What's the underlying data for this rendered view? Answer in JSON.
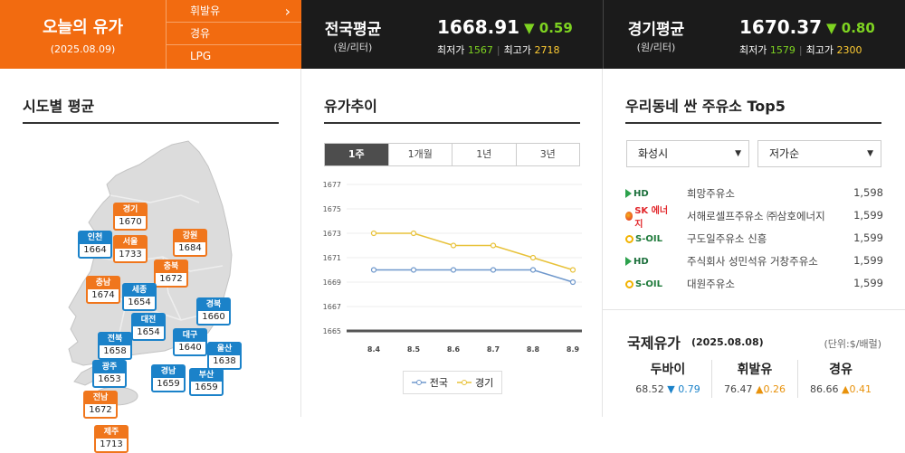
{
  "today": {
    "title": "오늘의 유가",
    "date": "(2025.08.09)"
  },
  "fuel_menu": [
    {
      "label": "휘발유"
    },
    {
      "label": "경유"
    },
    {
      "label": "LPG"
    }
  ],
  "national": {
    "name": "전국평균",
    "unit": "(원/리터)",
    "price": "1668.91",
    "change": "▼ 0.59",
    "min_label": "최저가",
    "min": "1567",
    "max_label": "최고가",
    "max": "2718"
  },
  "gyeonggi": {
    "name": "경기평균",
    "unit": "(원/리터)",
    "price": "1670.37",
    "change": "▼ 0.80",
    "min_label": "최저가",
    "min": "1579",
    "max_label": "최고가",
    "max": "2300"
  },
  "regions": {
    "title": "시도별 평균",
    "items": [
      {
        "name": "경기",
        "value": "1670"
      },
      {
        "name": "인천",
        "value": "1664"
      },
      {
        "name": "서울",
        "value": "1733"
      },
      {
        "name": "강원",
        "value": "1684"
      },
      {
        "name": "충북",
        "value": "1672"
      },
      {
        "name": "충남",
        "value": "1674"
      },
      {
        "name": "세종",
        "value": "1654"
      },
      {
        "name": "경북",
        "value": "1660"
      },
      {
        "name": "대전",
        "value": "1654"
      },
      {
        "name": "전북",
        "value": "1658"
      },
      {
        "name": "대구",
        "value": "1640"
      },
      {
        "name": "울산",
        "value": "1638"
      },
      {
        "name": "광주",
        "value": "1653"
      },
      {
        "name": "경남",
        "value": "1659"
      },
      {
        "name": "부산",
        "value": "1659"
      },
      {
        "name": "전남",
        "value": "1672"
      },
      {
        "name": "제주",
        "value": "1713"
      }
    ]
  },
  "trend": {
    "title": "유가추이",
    "tabs": [
      {
        "label": "1주"
      },
      {
        "label": "1개월"
      },
      {
        "label": "1년"
      },
      {
        "label": "3년"
      }
    ],
    "legend_national": "전국",
    "legend_gyeonggi": "경기"
  },
  "chart_data": {
    "type": "line",
    "x": [
      "8.4",
      "8.5",
      "8.6",
      "8.7",
      "8.8",
      "8.9"
    ],
    "series": [
      {
        "name": "전국",
        "values": [
          1670,
          1670,
          1670,
          1670,
          1670,
          1669
        ],
        "color": "#6f98cc"
      },
      {
        "name": "경기",
        "values": [
          1673,
          1673,
          1672,
          1672,
          1671,
          1670
        ],
        "color": "#e8c23a"
      }
    ],
    "ylim": [
      1665,
      1677
    ],
    "yticks": [
      1665,
      1667,
      1669,
      1671,
      1673,
      1675,
      1677
    ],
    "grid": true,
    "legend": "bottom"
  },
  "stations": {
    "title": "우리동네 싼 주유소 Top5",
    "region_select": "화성시",
    "sort_select": "저가순",
    "items": [
      {
        "brand": "HD 현대오일뱅크",
        "logo": "HD",
        "name": "희망주유소",
        "price": "1,598"
      },
      {
        "brand": "SK에너지",
        "logo": "SK 에너지",
        "name": "서해로셀프주유소 ㈜삼호에너지",
        "price": "1,599"
      },
      {
        "brand": "S-OIL",
        "logo": "S-OIL",
        "name": "구도일주유소 신흥",
        "price": "1,599"
      },
      {
        "brand": "HD 현대오일뱅크",
        "logo": "HD",
        "name": "주식회사 성민석유 거창주유소",
        "price": "1,599"
      },
      {
        "brand": "S-OIL",
        "logo": "S-OIL",
        "name": "대원주유소",
        "price": "1,599"
      }
    ]
  },
  "international": {
    "title": "국제유가",
    "date": "(2025.08.08)",
    "unit": "(단위:$/배럴)",
    "items": [
      {
        "name": "두바이",
        "value": "68.52",
        "change": "▼ 0.79",
        "dir": "down"
      },
      {
        "name": "휘발유",
        "value": "76.47",
        "change": "▲0.26",
        "dir": "up"
      },
      {
        "name": "경유",
        "value": "86.66",
        "change": "▲0.41",
        "dir": "up"
      }
    ]
  }
}
